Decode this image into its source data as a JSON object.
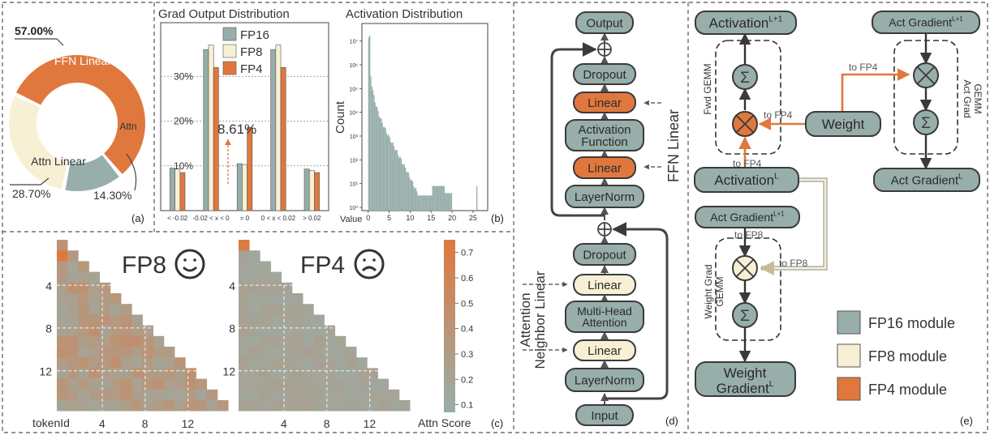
{
  "colors": {
    "fp16": "#97aeab",
    "fp8": "#f8f0d4",
    "fp4": "#e0783e",
    "dark": "#3a3a3a",
    "grid": "#888888"
  },
  "panel_a": {
    "label": "(a)",
    "slices": [
      {
        "name": "FFN Linear",
        "pct_label": "57.00%",
        "value": 57.0
      },
      {
        "name": "Attn",
        "pct_label": "14.30%",
        "value": 14.3
      },
      {
        "name": "Attn Linear",
        "pct_label": "28.70%",
        "value": 28.7
      }
    ]
  },
  "panel_b": {
    "label": "(b)",
    "grad_title": "Grad Output Distribution",
    "act_title": "Activation Distribution",
    "legend": [
      "FP16",
      "FP8",
      "FP4"
    ],
    "y_ticks": [
      "10%",
      "20%",
      "30%"
    ],
    "annotation": "8.61%",
    "categories": [
      "< -0.02",
      "-0.02 < x < 0",
      "= 0",
      "0 < x < 0.02",
      "> 0.02"
    ],
    "series": [
      {
        "name": "FP16",
        "values": [
          9.5,
          36.0,
          10.5,
          36.0,
          9.3
        ]
      },
      {
        "name": "FP8",
        "values": [
          9.3,
          37.0,
          10.3,
          37.0,
          9.0
        ]
      },
      {
        "name": "FP4",
        "values": [
          8.5,
          32.0,
          18.6,
          32.0,
          8.5
        ]
      }
    ],
    "act_ylabel": "Count",
    "act_xlabel": "Value",
    "act_x_ticks": [
      "0",
      "5",
      "10",
      "15",
      "20",
      "25"
    ],
    "act_y_ticks": [
      "10⁰",
      "10¹",
      "10²",
      "10³",
      "10⁴",
      "10⁵",
      "10⁶",
      "10⁷"
    ]
  },
  "panel_c": {
    "label": "(c)",
    "left_title": "FP8",
    "right_title": "FP4",
    "y_ticks": [
      "4",
      "8",
      "12"
    ],
    "x_ticks": [
      "4",
      "8",
      "12"
    ],
    "x_label": "tokenId",
    "colorbar_label": "Attn Score",
    "colorbar_ticks": [
      "0.1",
      "0.2",
      "0.3",
      "0.4",
      "0.5",
      "0.6",
      "0.7"
    ]
  },
  "panel_d": {
    "label": "(d)",
    "nodes": {
      "output": "Output",
      "dropout_top": "Dropout",
      "linear_top": "Linear",
      "act_fn_1": "Activation",
      "act_fn_2": "Function",
      "linear_mid": "Linear",
      "layernorm_top": "LayerNorm",
      "dropout_bot": "Dropout",
      "linear_attn_top": "Linear",
      "mha_1": "Multi-Head",
      "mha_2": "Attention",
      "linear_attn_bot": "Linear",
      "layernorm_bot": "LayerNorm",
      "input": "Input"
    },
    "ffn_label": "FFN Linear",
    "attn_label_1": "Attention",
    "attn_label_2": "Neighbor Linear"
  },
  "panel_e": {
    "label": "(e)",
    "activation_top": "Activation",
    "activation_top_sup": "L+1",
    "act_grad_top": "Act Gradient",
    "act_grad_top_sup": "L+1",
    "weight": "Weight",
    "activation_l": "Activation",
    "activation_l_sup": "L",
    "act_grad_l": "Act Gradient",
    "act_grad_l_sup": "L",
    "act_grad_mid": "Act Gradient",
    "act_grad_mid_sup": "L+1",
    "weight_grad_1": "Weight",
    "weight_grad_2": "Gradient",
    "weight_grad_sup": "L",
    "fwd_gemm": "Fwd GEMM",
    "act_grad_gemm_1": "Act Grad",
    "act_grad_gemm_2": "GEMM",
    "weight_grad_gemm_1": "Weight Grad",
    "weight_grad_gemm_2": "GEMM",
    "to_fp4_a": "to FP4",
    "to_fp4_b": "to FP4",
    "to_fp4_c": "to FP4",
    "to_fp8_a": "to FP8",
    "to_fp8_b": "to FP8",
    "legend": [
      "FP16 module",
      "FP8 module",
      "FP4 module"
    ]
  }
}
